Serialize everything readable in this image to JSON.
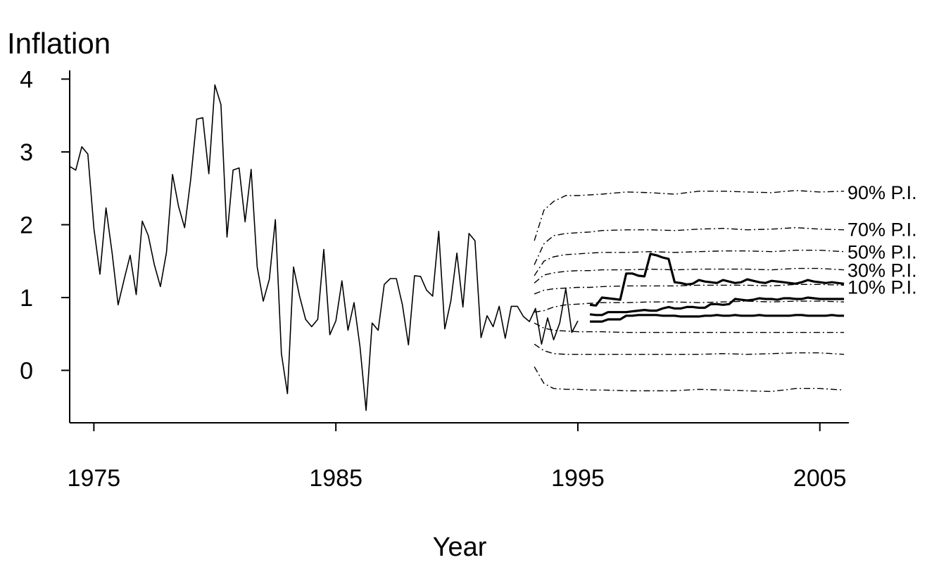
{
  "chart_data": {
    "type": "line",
    "title": "",
    "ylabel": "Inflation",
    "xlabel": "Year",
    "xlim": [
      1974,
      2006.2
    ],
    "ylim": [
      -0.72,
      4.12
    ],
    "x_ticks": [
      1975,
      1985,
      1995,
      2005
    ],
    "x_tick_labels": [
      "1975",
      "1985",
      "1995",
      "2005"
    ],
    "y_ticks": [
      0,
      1,
      2,
      3,
      4
    ],
    "y_tick_labels": [
      "0",
      "1",
      "2",
      "3",
      "4"
    ],
    "grid": false,
    "legend": "none",
    "historical": {
      "start": 1974.0,
      "step": 0.25,
      "values": [
        2.8,
        2.75,
        3.07,
        2.97,
        1.95,
        1.32,
        2.23,
        1.62,
        0.9,
        1.25,
        1.58,
        1.04,
        2.05,
        1.85,
        1.45,
        1.15,
        1.62,
        2.69,
        2.25,
        1.96,
        2.62,
        3.45,
        3.47,
        2.7,
        3.92,
        3.65,
        1.83,
        2.75,
        2.78,
        2.04,
        2.76,
        1.42,
        0.95,
        1.25,
        2.07,
        0.23,
        -0.32,
        1.42,
        1.02,
        0.7,
        0.6,
        0.7,
        1.66,
        0.49,
        0.68,
        1.23,
        0.55,
        0.93,
        0.32,
        -0.55,
        0.65,
        0.55,
        1.18,
        1.26,
        1.26,
        0.9,
        0.35,
        1.3,
        1.29,
        1.1,
        1.02,
        1.91,
        0.57,
        0.95,
        1.61,
        0.87,
        1.88,
        1.78,
        0.45,
        0.75,
        0.6,
        0.88,
        0.44,
        0.88,
        0.88,
        0.74,
        0.67,
        0.85,
        0.36,
        0.72,
        0.42,
        0.65,
        1.12,
        0.52,
        0.68
      ]
    },
    "forecast_lines": {
      "start": 1995.5,
      "step": 0.25,
      "upper_path": [
        0.9,
        0.89,
        1.0,
        0.99,
        0.98,
        0.97,
        1.33,
        1.33,
        1.3,
        1.29,
        1.6,
        1.58,
        1.55,
        1.53,
        1.21,
        1.2,
        1.18,
        1.19,
        1.24,
        1.22,
        1.21,
        1.2,
        1.24,
        1.22,
        1.2,
        1.21,
        1.25,
        1.23,
        1.21,
        1.2,
        1.23,
        1.22,
        1.21,
        1.2,
        1.19,
        1.21,
        1.24,
        1.22,
        1.21,
        1.2,
        1.21,
        1.2,
        1.19
      ],
      "middle_path": [
        0.77,
        0.76,
        0.76,
        0.8,
        0.8,
        0.8,
        0.8,
        0.81,
        0.82,
        0.83,
        0.82,
        0.82,
        0.85,
        0.87,
        0.85,
        0.85,
        0.87,
        0.87,
        0.86,
        0.86,
        0.91,
        0.91,
        0.9,
        0.91,
        0.98,
        0.97,
        0.96,
        0.97,
        0.99,
        0.98,
        0.98,
        0.97,
        0.99,
        0.99,
        0.98,
        0.98,
        1.0,
        0.99,
        0.98,
        0.98,
        0.98,
        0.98,
        0.98
      ],
      "lower_path": [
        0.67,
        0.67,
        0.67,
        0.7,
        0.7,
        0.7,
        0.75,
        0.75,
        0.76,
        0.76,
        0.76,
        0.76,
        0.75,
        0.75,
        0.75,
        0.74,
        0.74,
        0.74,
        0.74,
        0.75,
        0.75,
        0.76,
        0.75,
        0.75,
        0.76,
        0.75,
        0.75,
        0.75,
        0.76,
        0.75,
        0.75,
        0.75,
        0.75,
        0.75,
        0.76,
        0.76,
        0.75,
        0.75,
        0.75,
        0.75,
        0.76,
        0.75,
        0.75
      ]
    },
    "prediction_intervals": {
      "x": [
        1993.2,
        1993.6,
        1994.0,
        1994.5,
        1995.0,
        1995.5,
        1996.0,
        1997.0,
        1998.0,
        1999.0,
        2000.0,
        2001.0,
        2002.0,
        2003.0,
        2004.0,
        2005.0,
        2006.0
      ],
      "bands": [
        {
          "name": "90% P.I.",
          "label_y": 2.45,
          "upper": [
            1.78,
            2.2,
            2.32,
            2.4,
            2.4,
            2.41,
            2.42,
            2.45,
            2.44,
            2.42,
            2.46,
            2.46,
            2.45,
            2.44,
            2.47,
            2.45,
            2.46
          ],
          "lower": [
            0.05,
            -0.18,
            -0.25,
            -0.26,
            -0.26,
            -0.27,
            -0.27,
            -0.28,
            -0.28,
            -0.28,
            -0.26,
            -0.27,
            -0.28,
            -0.29,
            -0.25,
            -0.25,
            -0.27
          ]
        },
        {
          "name": "70% P.I.",
          "label_y": 1.94,
          "upper": [
            1.45,
            1.74,
            1.85,
            1.88,
            1.89,
            1.9,
            1.92,
            1.93,
            1.93,
            1.92,
            1.94,
            1.95,
            1.93,
            1.94,
            1.96,
            1.94,
            1.93
          ],
          "lower": [
            0.36,
            0.27,
            0.23,
            0.22,
            0.22,
            0.22,
            0.22,
            0.22,
            0.22,
            0.22,
            0.22,
            0.23,
            0.22,
            0.23,
            0.24,
            0.24,
            0.22
          ]
        },
        {
          "name": "50% P.I.",
          "label_y": 1.63,
          "upper": [
            1.3,
            1.5,
            1.56,
            1.59,
            1.6,
            1.61,
            1.62,
            1.62,
            1.63,
            1.62,
            1.63,
            1.64,
            1.64,
            1.63,
            1.65,
            1.65,
            1.63
          ]
        },
        {
          "name": "30% P.I.",
          "label_y": 1.38,
          "upper": [
            1.2,
            1.31,
            1.34,
            1.36,
            1.37,
            1.37,
            1.38,
            1.38,
            1.39,
            1.38,
            1.39,
            1.39,
            1.39,
            1.38,
            1.4,
            1.4,
            1.38
          ]
        },
        {
          "name": "10% P.I.",
          "label_y": 1.15,
          "upper": [
            1.05,
            1.1,
            1.12,
            1.13,
            1.14,
            1.14,
            1.15,
            1.16,
            1.16,
            1.16,
            1.17,
            1.17,
            1.17,
            1.16,
            1.18,
            1.18,
            1.17
          ],
          "lower": [
            0.8,
            0.82,
            0.87,
            0.9,
            0.91,
            0.92,
            0.93,
            0.93,
            0.94,
            0.94,
            0.93,
            0.94,
            0.95,
            0.94,
            0.95,
            0.95,
            0.94
          ]
        },
        {
          "name": "",
          "label_y": null,
          "upper": [
            0.65,
            0.58,
            0.55,
            0.54,
            0.53,
            0.53,
            0.53,
            0.52,
            0.52,
            0.52,
            0.52,
            0.52,
            0.52,
            0.52,
            0.52,
            0.52,
            0.52
          ]
        }
      ]
    }
  }
}
